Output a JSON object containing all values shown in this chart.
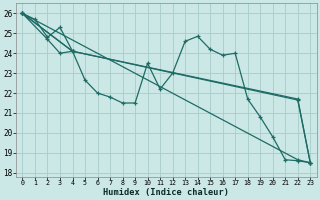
{
  "background_color": "#cce8e6",
  "grid_color": "#aad0ce",
  "line_color": "#1e6b65",
  "xlabel": "Humidex (Indice chaleur)",
  "xlim": [
    -0.5,
    23.5
  ],
  "ylim": [
    17.8,
    26.5
  ],
  "yticks": [
    18,
    19,
    20,
    21,
    22,
    23,
    24,
    25,
    26
  ],
  "xticks": [
    0,
    1,
    2,
    3,
    4,
    5,
    6,
    7,
    8,
    9,
    10,
    11,
    12,
    13,
    14,
    15,
    16,
    17,
    18,
    19,
    20,
    21,
    22,
    23
  ],
  "series1_x": [
    0,
    1,
    2,
    3,
    4,
    5,
    6,
    7,
    8,
    9,
    10,
    11,
    12,
    13,
    14,
    15,
    16,
    17,
    18,
    19,
    20,
    21,
    22,
    23
  ],
  "series1_y": [
    26.0,
    25.7,
    24.8,
    25.3,
    24.1,
    22.65,
    22.0,
    21.8,
    21.5,
    21.5,
    23.5,
    22.2,
    23.0,
    24.6,
    24.85,
    24.2,
    23.9,
    24.0,
    21.7,
    20.8,
    19.8,
    18.65,
    18.6,
    18.5
  ],
  "line2_x": [
    0,
    2,
    3,
    4
  ],
  "line2_y": [
    26.0,
    24.7,
    24.0,
    24.1
  ],
  "line3_x": [
    0,
    22,
    23
  ],
  "line3_y": [
    26.0,
    18.65,
    18.5
  ],
  "line4_x": [
    0,
    4,
    22,
    23
  ],
  "line4_y": [
    26.0,
    24.1,
    21.7,
    18.5
  ],
  "line5_x": [
    0,
    4,
    22,
    23
  ],
  "line5_y": [
    26.0,
    24.1,
    21.65,
    18.5
  ]
}
